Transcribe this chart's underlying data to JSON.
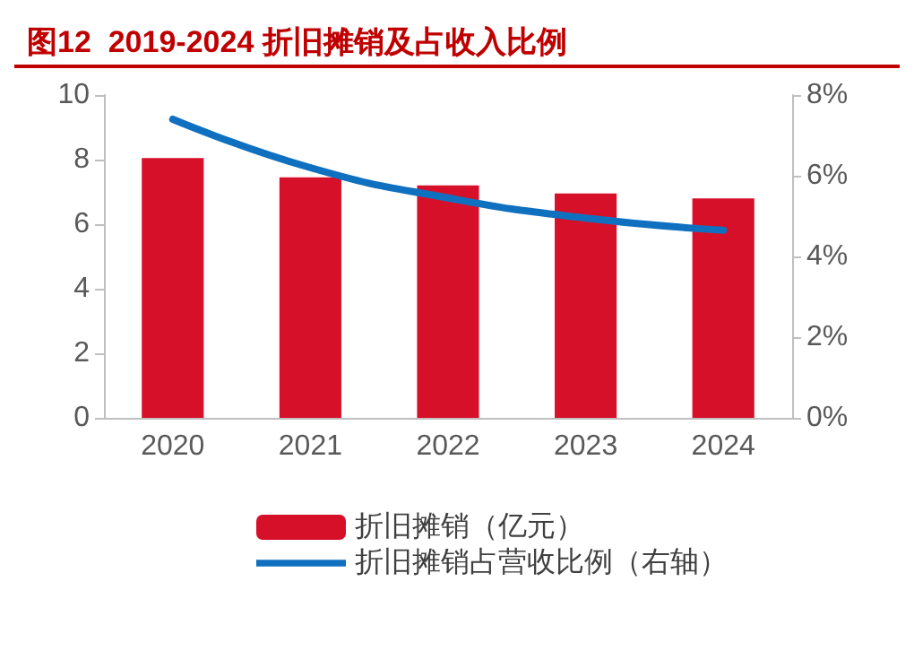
{
  "chart_data": {
    "type": "bar",
    "title": "图12  2019-2024 折旧摊销及占收入比例",
    "categories": [
      "2020",
      "2021",
      "2022",
      "2023",
      "2024"
    ],
    "series": [
      {
        "name": "折旧摊销（亿元）",
        "color": "#d7102a",
        "values": [
          8.05,
          7.45,
          7.2,
          6.95,
          6.8
        ]
      },
      {
        "name": "折旧摊销占营收比例（右轴）",
        "type": "line",
        "axis": "y2",
        "color": "#1070c0",
        "values": [
          7.4,
          6.2,
          5.45,
          4.95,
          4.65
        ]
      }
    ],
    "ylim": [
      0,
      10
    ],
    "yticks": [
      0,
      2,
      4,
      6,
      8,
      10
    ],
    "y2lim": [
      0,
      8
    ],
    "y2ticks": [
      {
        "value": 0,
        "label": "0%"
      },
      {
        "value": 2,
        "label": "2%"
      },
      {
        "value": 4,
        "label": "4%"
      },
      {
        "value": 6,
        "label": "6%"
      },
      {
        "value": 8,
        "label": "8%"
      }
    ],
    "grid": false,
    "legend": "bottom",
    "marker": "none",
    "line_style": "solid"
  }
}
